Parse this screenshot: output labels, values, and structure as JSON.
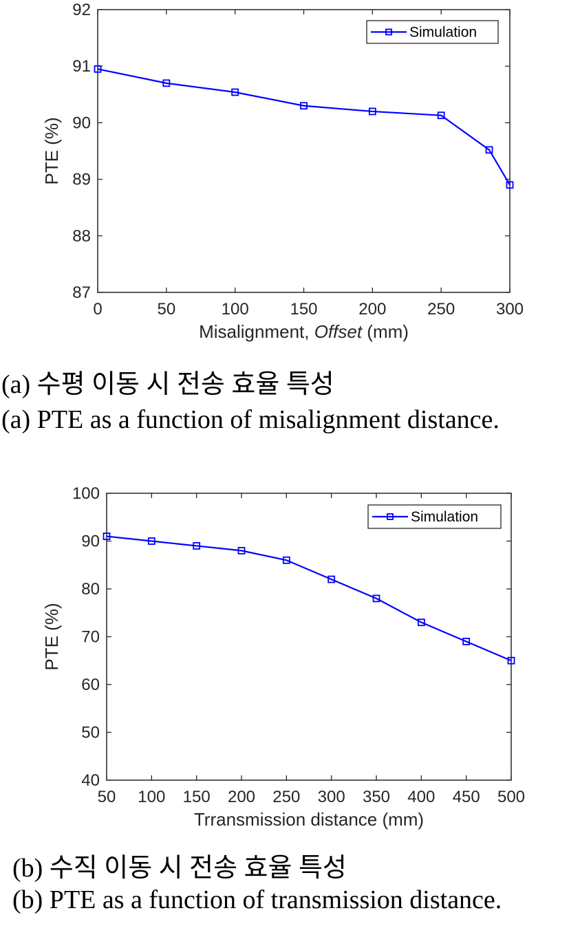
{
  "charts": [
    {
      "chart_data": {
        "type": "line",
        "xlabel": "Misalignment, ",
        "xlabel_italic": "Offset",
        "xlabel_suffix": " (mm)",
        "ylabel": "PTE (%)",
        "xlim": [
          0,
          300
        ],
        "ylim": [
          87,
          92
        ],
        "xticks": [
          "0",
          "50",
          "100",
          "150",
          "200",
          "250",
          "300"
        ],
        "yticks": [
          "87",
          "88",
          "89",
          "90",
          "91",
          "92"
        ],
        "series": [
          {
            "name": "Simulation",
            "x": [
              0,
              50,
              100,
              150,
              200,
              250,
              285,
              300
            ],
            "y": [
              90.95,
              90.7,
              90.54,
              90.3,
              90.2,
              90.13,
              89.52,
              88.9
            ]
          }
        ],
        "legend": "top-right",
        "color": "#0000ff",
        "marker": "square"
      },
      "caption_ko": "(a) 수평 이동 시 전송 효율 특성",
      "caption_en": "(a) PTE as a function of misalignment distance."
    },
    {
      "chart_data": {
        "type": "line",
        "xlabel": "Trransmission distance (mm)",
        "ylabel": "PTE (%)",
        "xlim": [
          50,
          500
        ],
        "ylim": [
          40,
          100
        ],
        "xticks": [
          "50",
          "100",
          "150",
          "200",
          "250",
          "300",
          "350",
          "400",
          "450",
          "500"
        ],
        "yticks": [
          "40",
          "50",
          "60",
          "70",
          "80",
          "90",
          "100"
        ],
        "series": [
          {
            "name": "Simulation",
            "x": [
              50,
              100,
              150,
              200,
              250,
              300,
              350,
              400,
              450,
              500
            ],
            "y": [
              91,
              90,
              89,
              88,
              86,
              82,
              78,
              73,
              69,
              65
            ]
          }
        ],
        "legend": "top-right",
        "color": "#0000ff",
        "marker": "square"
      },
      "caption_ko": "(b) 수직 이동 시 전송 효율 특성",
      "caption_en": "(b) PTE as a function of transmission distance."
    }
  ]
}
